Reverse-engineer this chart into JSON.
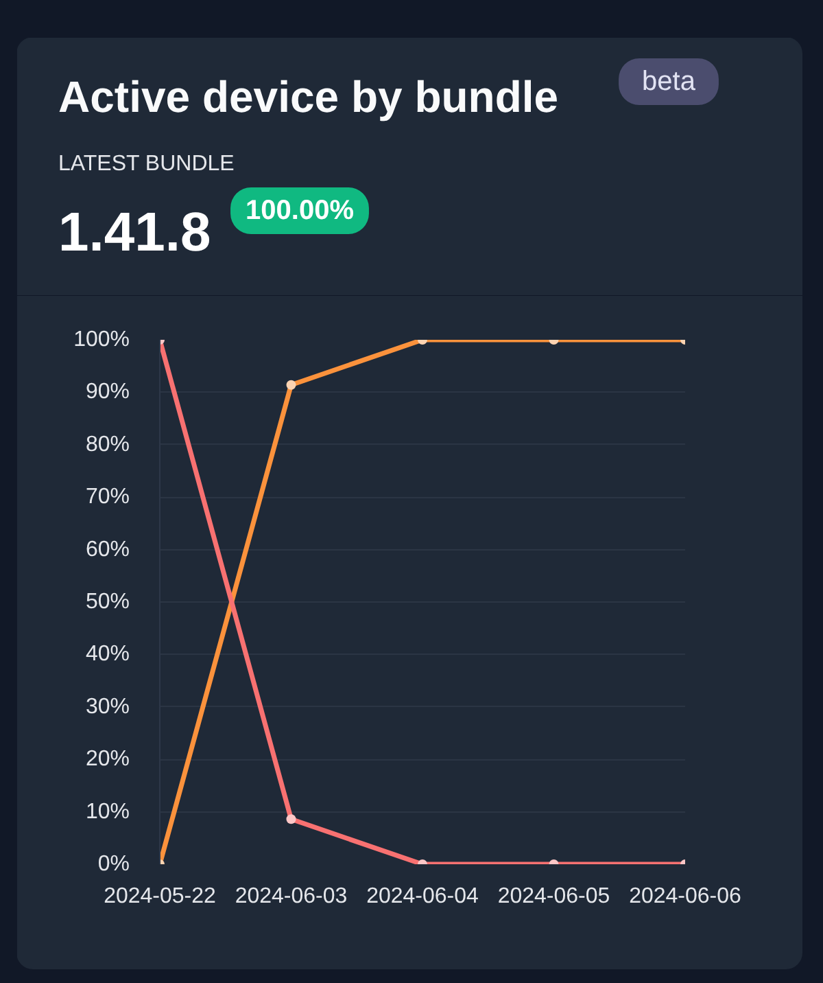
{
  "chart_data": {
    "type": "line",
    "title": "Active device by bundle",
    "subtitle": "LATEST BUNDLE",
    "annotations": [
      "beta",
      "1.41.8",
      "100.00%"
    ],
    "categories": [
      "2024-05-22",
      "2024-06-03",
      "2024-06-04",
      "2024-06-05",
      "2024-06-06"
    ],
    "series": [
      {
        "color": "#fb923c",
        "values": [
          0,
          91.4,
          100,
          100,
          100
        ]
      },
      {
        "color": "#f87171",
        "values": [
          100,
          8.6,
          0,
          0,
          0
        ]
      }
    ],
    "ylim": [
      0,
      100
    ],
    "yticks": [
      {
        "value": 0,
        "label": "0%"
      },
      {
        "value": 10,
        "label": "10%"
      },
      {
        "value": 20,
        "label": "20%"
      },
      {
        "value": 30,
        "label": "30%"
      },
      {
        "value": 40,
        "label": "40%"
      },
      {
        "value": 50,
        "label": "50%"
      },
      {
        "value": 60,
        "label": "60%"
      },
      {
        "value": 70,
        "label": "70%"
      },
      {
        "value": 80,
        "label": "80%"
      },
      {
        "value": 90,
        "label": "90%"
      },
      {
        "value": 100,
        "label": "100%"
      }
    ],
    "grid": "y",
    "marker": "circle",
    "line_style": "solid"
  }
}
